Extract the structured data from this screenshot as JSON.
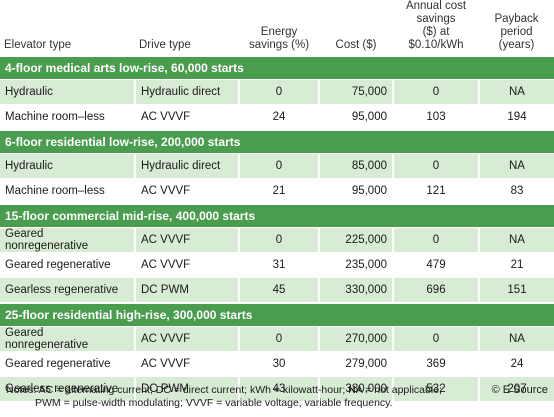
{
  "table": {
    "columns": [
      "Elevator type",
      "Drive type",
      "Energy\nsavings (%)",
      "Cost ($)",
      "Annual cost savings\n($) at $0.10/kWh",
      "Payback period\n(years)"
    ],
    "sections": [
      {
        "title": "4-floor medical arts low-rise, 60,000 starts",
        "rows": [
          [
            "Hydraulic",
            "Hydraulic direct",
            "0",
            "75,000",
            "0",
            "NA"
          ],
          [
            "Machine room–less",
            "AC VVVF",
            "24",
            "95,000",
            "103",
            "194"
          ]
        ]
      },
      {
        "title": "6-floor residential low-rise, 200,000 starts",
        "rows": [
          [
            "Hydraulic",
            "Hydraulic direct",
            "0",
            "85,000",
            "0",
            "NA"
          ],
          [
            "Machine room–less",
            "AC VVVF",
            "21",
            "95,000",
            "121",
            "83"
          ]
        ]
      },
      {
        "title": "15-floor commercial mid-rise, 400,000 starts",
        "rows": [
          [
            "Geared nonregenerative",
            "AC VVVF",
            "0",
            "225,000",
            "0",
            "NA"
          ],
          [
            "Geared regenerative",
            "AC VVVF",
            "31",
            "235,000",
            "479",
            "21"
          ],
          [
            "Gearless regenerative",
            "DC PWM",
            "45",
            "330,000",
            "696",
            "151"
          ]
        ]
      },
      {
        "title": "25-floor residential high-rise, 300,000 starts",
        "rows": [
          [
            "Geared nonregenerative",
            "AC VVVF",
            "0",
            "270,000",
            "0",
            "NA"
          ],
          [
            "Geared regenerative",
            "AC VVVF",
            "30",
            "279,000",
            "369",
            "24"
          ],
          [
            "Gearless regenerative",
            "DC PWM",
            "43",
            "380,000",
            "532",
            "207"
          ]
        ]
      }
    ]
  },
  "notes": [
    "Notes: AC = alternating current; DC = direct current; kWh = kilowatt-hour; NA = not applicable;",
    "PWM = pulse-width modulating; VVVF = variable voltage, variable frequency."
  ],
  "source": "© E Source"
}
